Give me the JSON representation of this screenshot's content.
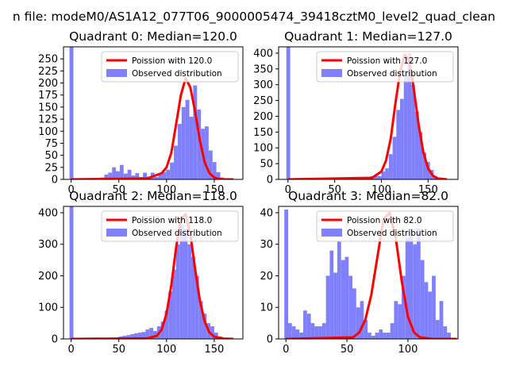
{
  "figure_title": "n file: modeM0/AS1A12_077T06_9000005474_39418cztM0_level2_quad_clean",
  "colors": {
    "hist": "#8080ff",
    "curve": "#ff0000"
  },
  "chart_data": [
    {
      "type": "bar",
      "title": "Quadrant 0: Median=120.0",
      "median": 120.0,
      "xlim": [
        -8,
        180
      ],
      "ylim": [
        0,
        275
      ],
      "xticks": [
        0,
        50,
        100,
        150
      ],
      "yticks": [
        0,
        25,
        50,
        75,
        100,
        125,
        150,
        175,
        200,
        225,
        250
      ],
      "legend": [
        "Poission with 120.0",
        "Observed distribution"
      ],
      "legend_position": "upper right",
      "series": [
        {
          "name": "Observed distribution",
          "type": "histogram",
          "bins": [
            [
              -1.7,
              2.4,
              275
            ],
            [
              2.4,
              6.4,
              0
            ],
            [
              6.4,
              10.5,
              0
            ],
            [
              10.5,
              14.5,
              0
            ],
            [
              14.5,
              18.6,
              0
            ],
            [
              18.6,
              22.6,
              0
            ],
            [
              22.6,
              26.7,
              0
            ],
            [
              26.7,
              30.7,
              1
            ],
            [
              30.7,
              34.8,
              4
            ],
            [
              34.8,
              38.8,
              10
            ],
            [
              38.8,
              42.9,
              14
            ],
            [
              42.9,
              46.9,
              25
            ],
            [
              46.9,
              51.0,
              17
            ],
            [
              51.0,
              55.0,
              30
            ],
            [
              55.0,
              59.1,
              12
            ],
            [
              59.1,
              63.1,
              20
            ],
            [
              63.1,
              67.2,
              8
            ],
            [
              67.2,
              71.2,
              13
            ],
            [
              71.2,
              75.3,
              5
            ],
            [
              75.3,
              79.3,
              14
            ],
            [
              79.3,
              83.4,
              6
            ],
            [
              83.4,
              87.4,
              14
            ],
            [
              87.4,
              91.5,
              5
            ],
            [
              91.5,
              95.5,
              13
            ],
            [
              95.5,
              99.6,
              15
            ],
            [
              99.6,
              103.6,
              20
            ],
            [
              103.6,
              107.7,
              35
            ],
            [
              107.7,
              111.7,
              70
            ],
            [
              111.7,
              115.8,
              115
            ],
            [
              115.8,
              119.8,
              150
            ],
            [
              119.8,
              123.9,
              165
            ],
            [
              123.9,
              127.9,
              130
            ],
            [
              127.9,
              132.0,
              195
            ],
            [
              132.0,
              136.0,
              145
            ],
            [
              136.0,
              140.1,
              105
            ],
            [
              140.1,
              144.1,
              110
            ],
            [
              144.1,
              148.2,
              60
            ],
            [
              148.2,
              152.2,
              36
            ],
            [
              152.2,
              156.3,
              15
            ],
            [
              156.3,
              160.3,
              4
            ],
            [
              160.3,
              164.4,
              2
            ],
            [
              164.4,
              168.4,
              2
            ]
          ]
        },
        {
          "name": "Poission with 120.0",
          "type": "curve",
          "x": [
            0,
            80,
            95,
            100,
            105,
            110,
            115,
            120,
            125,
            130,
            135,
            140,
            145,
            150,
            155,
            160,
            170
          ],
          "y": [
            0,
            2,
            13,
            25,
            55,
            115,
            175,
            210,
            190,
            140,
            80,
            35,
            13,
            4,
            1,
            0,
            0
          ]
        }
      ]
    },
    {
      "type": "bar",
      "title": "Quadrant 1: Median=127.0",
      "median": 127.0,
      "xlim": [
        -10,
        182
      ],
      "ylim": [
        0,
        420
      ],
      "xticks": [
        0,
        50,
        100,
        150
      ],
      "yticks": [
        0,
        50,
        100,
        150,
        200,
        250,
        300,
        350,
        400
      ],
      "legend": [
        "Poission with 127.0",
        "Observed distribution"
      ],
      "legend_position": "upper right",
      "series": [
        {
          "name": "Observed distribution",
          "type": "histogram",
          "bins": [
            [
              -1.7,
              2.4,
              420
            ],
            [
              80.0,
              84.0,
              5
            ],
            [
              84.0,
              88.0,
              5
            ],
            [
              88.0,
              92.0,
              10
            ],
            [
              92.0,
              96.0,
              12
            ],
            [
              96.0,
              100.0,
              10
            ],
            [
              100.0,
              104.0,
              25
            ],
            [
              104.0,
              108.0,
              35
            ],
            [
              108.0,
              112.0,
              80
            ],
            [
              112.0,
              116.0,
              135
            ],
            [
              116.0,
              120.0,
              220
            ],
            [
              120.0,
              124.0,
              255
            ],
            [
              124.0,
              128.0,
              330
            ],
            [
              128.0,
              132.0,
              400
            ],
            [
              132.0,
              136.0,
              300
            ],
            [
              136.0,
              140.0,
              215
            ],
            [
              140.0,
              144.0,
              150
            ],
            [
              144.0,
              148.0,
              85
            ],
            [
              148.0,
              152.0,
              55
            ],
            [
              152.0,
              156.0,
              30
            ],
            [
              156.0,
              160.0,
              10
            ],
            [
              160.0,
              164.0,
              5
            ]
          ]
        },
        {
          "name": "Poission with 127.0",
          "type": "curve",
          "x": [
            0,
            90,
            100,
            105,
            110,
            115,
            120,
            125,
            130,
            135,
            140,
            145,
            150,
            155,
            160,
            170
          ],
          "y": [
            0,
            5,
            25,
            60,
            130,
            240,
            340,
            395,
            375,
            280,
            170,
            85,
            35,
            12,
            3,
            0
          ]
        }
      ]
    },
    {
      "type": "bar",
      "title": "Quadrant 2: Median=118.0",
      "median": 118.0,
      "xlim": [
        -8,
        180
      ],
      "ylim": [
        0,
        420
      ],
      "xticks": [
        0,
        50,
        100,
        150
      ],
      "yticks": [
        0,
        100,
        200,
        300,
        400
      ],
      "legend": [
        "Poission with 118.0",
        "Observed distribution"
      ],
      "legend_position": "upper right",
      "series": [
        {
          "name": "Observed distribution",
          "type": "histogram",
          "bins": [
            [
              -1.7,
              2.4,
              420
            ],
            [
              34.0,
              38.0,
              2
            ],
            [
              38.0,
              42.0,
              3
            ],
            [
              42.0,
              46.0,
              4
            ],
            [
              46.0,
              50.0,
              5
            ],
            [
              50.0,
              54.0,
              8
            ],
            [
              54.0,
              58.0,
              10
            ],
            [
              58.0,
              62.0,
              12
            ],
            [
              62.0,
              66.0,
              15
            ],
            [
              66.0,
              70.0,
              18
            ],
            [
              70.0,
              74.0,
              20
            ],
            [
              74.0,
              78.0,
              22
            ],
            [
              78.0,
              82.0,
              30
            ],
            [
              82.0,
              86.0,
              35
            ],
            [
              86.0,
              90.0,
              25
            ],
            [
              90.0,
              94.0,
              40
            ],
            [
              94.0,
              98.0,
              55
            ],
            [
              98.0,
              102.0,
              90
            ],
            [
              102.0,
              106.0,
              150
            ],
            [
              106.0,
              110.0,
              220
            ],
            [
              110.0,
              114.0,
              300
            ],
            [
              114.0,
              118.0,
              360
            ],
            [
              118.0,
              122.0,
              350
            ],
            [
              122.0,
              126.0,
              300
            ],
            [
              126.0,
              130.0,
              260
            ],
            [
              130.0,
              134.0,
              200
            ],
            [
              134.0,
              138.0,
              120
            ],
            [
              138.0,
              142.0,
              80
            ],
            [
              142.0,
              146.0,
              50
            ],
            [
              146.0,
              150.0,
              40
            ],
            [
              150.0,
              154.0,
              20
            ],
            [
              154.0,
              158.0,
              8
            ]
          ]
        },
        {
          "name": "Poission with 118.0",
          "type": "curve",
          "x": [
            0,
            80,
            90,
            95,
            100,
            105,
            110,
            115,
            120,
            125,
            130,
            135,
            140,
            145,
            150,
            160,
            170
          ],
          "y": [
            0,
            2,
            10,
            30,
            80,
            170,
            290,
            380,
            395,
            330,
            220,
            120,
            55,
            20,
            7,
            1,
            0
          ]
        }
      ]
    },
    {
      "type": "bar",
      "title": "Quadrant 3: Median=82.0",
      "median": 82.0,
      "xlim": [
        -6,
        141
      ],
      "ylim": [
        0,
        42
      ],
      "xticks": [
        0,
        50,
        100
      ],
      "yticks": [
        0,
        10,
        20,
        30,
        40
      ],
      "legend": [
        "Poission with 82.0",
        "Observed distribution"
      ],
      "legend_position": "upper right",
      "series": [
        {
          "name": "Observed distribution",
          "type": "histogram",
          "bins": [
            [
              -1.3,
              1.8,
              41
            ],
            [
              1.8,
              4.9,
              5
            ],
            [
              4.9,
              8.0,
              4
            ],
            [
              8.0,
              11.1,
              3
            ],
            [
              11.1,
              14.2,
              2
            ],
            [
              14.2,
              17.3,
              9
            ],
            [
              17.3,
              20.4,
              8
            ],
            [
              20.4,
              23.5,
              5
            ],
            [
              23.5,
              26.6,
              4
            ],
            [
              26.6,
              29.7,
              4
            ],
            [
              29.7,
              32.8,
              5
            ],
            [
              32.8,
              35.9,
              20
            ],
            [
              35.9,
              39.0,
              28
            ],
            [
              39.0,
              42.1,
              21
            ],
            [
              42.1,
              45.2,
              31
            ],
            [
              45.2,
              48.3,
              25
            ],
            [
              48.3,
              51.4,
              26
            ],
            [
              51.4,
              54.5,
              20
            ],
            [
              54.5,
              57.6,
              16
            ],
            [
              57.6,
              60.7,
              10
            ],
            [
              60.7,
              63.8,
              12
            ],
            [
              63.8,
              66.9,
              6
            ],
            [
              66.9,
              70.0,
              2
            ],
            [
              70.0,
              73.1,
              1
            ],
            [
              73.1,
              76.2,
              2
            ],
            [
              76.2,
              79.3,
              3
            ],
            [
              79.3,
              82.4,
              2
            ],
            [
              82.4,
              85.5,
              2
            ],
            [
              85.5,
              88.6,
              5
            ],
            [
              88.6,
              91.7,
              12
            ],
            [
              91.7,
              94.8,
              11
            ],
            [
              94.8,
              97.9,
              20
            ],
            [
              97.9,
              101.0,
              32
            ],
            [
              101.0,
              104.1,
              35
            ],
            [
              104.1,
              107.2,
              30
            ],
            [
              107.2,
              110.3,
              35
            ],
            [
              110.3,
              113.4,
              25
            ],
            [
              113.4,
              116.5,
              18
            ],
            [
              116.5,
              119.6,
              15
            ],
            [
              119.6,
              122.7,
              20
            ],
            [
              122.7,
              125.8,
              6
            ],
            [
              125.8,
              128.9,
              12
            ],
            [
              128.9,
              132.0,
              4
            ],
            [
              132.0,
              135.1,
              2
            ]
          ]
        },
        {
          "name": "Poission with 82.0",
          "type": "curve",
          "x": [
            0,
            55,
            60,
            65,
            70,
            75,
            80,
            85,
            90,
            95,
            100,
            105,
            110,
            120,
            140
          ],
          "y": [
            0,
            0.5,
            2,
            6,
            14,
            26,
            38,
            40,
            32,
            18,
            7,
            2,
            0.5,
            0,
            0
          ]
        }
      ]
    }
  ]
}
